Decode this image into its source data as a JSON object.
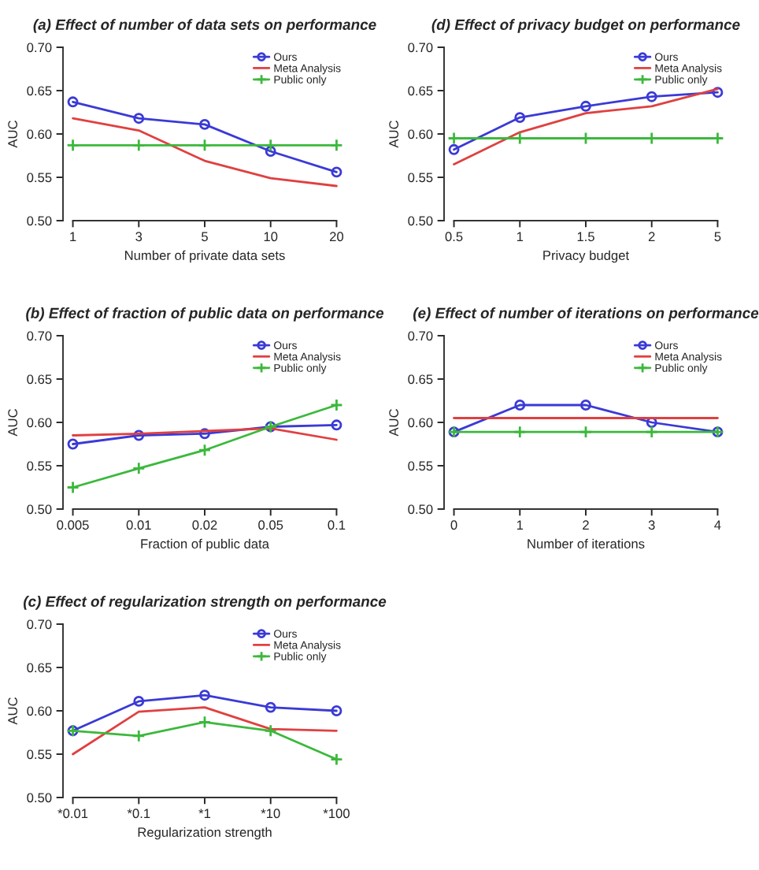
{
  "chart_data": [
    {
      "type": "line",
      "title": "(a) Effect of number of data sets on performance",
      "xlabel": "Number of private data sets",
      "ylabel": "AUC",
      "categories": [
        "1",
        "3",
        "5",
        "10",
        "20"
      ],
      "ylim": [
        0.5,
        0.7
      ],
      "yticks": [
        {
          "value": 0.5,
          "label": "0.50"
        },
        {
          "value": 0.55,
          "label": "0.55"
        },
        {
          "value": 0.6,
          "label": "0.60"
        },
        {
          "value": 0.65,
          "label": "0.65"
        },
        {
          "value": 0.7,
          "label": "0.70"
        }
      ],
      "grid": false,
      "legend": "top right",
      "series": [
        {
          "name": "Ours",
          "color": "#3a3ad6",
          "marker": "circle",
          "values": [
            0.637,
            0.618,
            0.611,
            0.58,
            0.556
          ]
        },
        {
          "name": "Meta Analysis",
          "color": "#e04040",
          "marker": "none",
          "values": [
            0.618,
            0.604,
            0.569,
            0.549,
            0.54
          ]
        },
        {
          "name": "Public only",
          "color": "#3cb83c",
          "marker": "cross",
          "values": [
            0.587,
            0.587,
            0.587,
            0.587,
            0.587
          ]
        }
      ]
    },
    {
      "type": "line",
      "title": "(b) Effect of fraction of public data on performance",
      "xlabel": "Fraction of public data",
      "ylabel": "AUC",
      "categories": [
        "0.005",
        "0.01",
        "0.02",
        "0.05",
        "0.1"
      ],
      "ylim": [
        0.5,
        0.7
      ],
      "yticks": [
        {
          "value": 0.5,
          "label": "0.50"
        },
        {
          "value": 0.55,
          "label": "0.55"
        },
        {
          "value": 0.6,
          "label": "0.60"
        },
        {
          "value": 0.65,
          "label": "0.65"
        },
        {
          "value": 0.7,
          "label": "0.70"
        }
      ],
      "grid": false,
      "legend": "top right",
      "series": [
        {
          "name": "Ours",
          "color": "#3a3ad6",
          "marker": "circle",
          "values": [
            0.575,
            0.585,
            0.587,
            0.595,
            0.597
          ]
        },
        {
          "name": "Meta Analysis",
          "color": "#e04040",
          "marker": "none",
          "values": [
            0.585,
            0.587,
            0.59,
            0.593,
            0.58
          ]
        },
        {
          "name": "Public only",
          "color": "#3cb83c",
          "marker": "cross",
          "values": [
            0.525,
            0.547,
            0.568,
            0.595,
            0.62
          ]
        }
      ]
    },
    {
      "type": "line",
      "title": "(c) Effect of regularization strength on performance",
      "xlabel": "Regularization strength",
      "ylabel": "AUC",
      "categories": [
        "*0.01",
        "*0.1",
        "*1",
        "*10",
        "*100"
      ],
      "ylim": [
        0.5,
        0.7
      ],
      "yticks": [
        {
          "value": 0.5,
          "label": "0.50"
        },
        {
          "value": 0.55,
          "label": "0.55"
        },
        {
          "value": 0.6,
          "label": "0.60"
        },
        {
          "value": 0.65,
          "label": "0.65"
        },
        {
          "value": 0.7,
          "label": "0.70"
        }
      ],
      "grid": false,
      "legend": "top right",
      "series": [
        {
          "name": "Ours",
          "color": "#3a3ad6",
          "marker": "circle",
          "values": [
            0.577,
            0.611,
            0.618,
            0.604,
            0.6
          ]
        },
        {
          "name": "Meta Analysis",
          "color": "#e04040",
          "marker": "none",
          "values": [
            0.55,
            0.599,
            0.604,
            0.579,
            0.577
          ]
        },
        {
          "name": "Public only",
          "color": "#3cb83c",
          "marker": "cross",
          "values": [
            0.577,
            0.571,
            0.587,
            0.577,
            0.544
          ]
        }
      ]
    },
    {
      "type": "line",
      "title": "(d) Effect of privacy budget on performance",
      "xlabel": "Privacy budget",
      "ylabel": "AUC",
      "categories": [
        "0.5",
        "1",
        "1.5",
        "2",
        "5"
      ],
      "ylim": [
        0.5,
        0.7
      ],
      "yticks": [
        {
          "value": 0.5,
          "label": "0.50"
        },
        {
          "value": 0.55,
          "label": "0.55"
        },
        {
          "value": 0.6,
          "label": "0.60"
        },
        {
          "value": 0.65,
          "label": "0.65"
        },
        {
          "value": 0.7,
          "label": "0.70"
        }
      ],
      "grid": false,
      "legend": "top right",
      "series": [
        {
          "name": "Ours",
          "color": "#3a3ad6",
          "marker": "circle",
          "values": [
            0.582,
            0.619,
            0.632,
            0.643,
            0.648
          ]
        },
        {
          "name": "Meta Analysis",
          "color": "#e04040",
          "marker": "none",
          "values": [
            0.565,
            0.602,
            0.624,
            0.632,
            0.652
          ]
        },
        {
          "name": "Public only",
          "color": "#3cb83c",
          "marker": "cross",
          "values": [
            0.595,
            0.595,
            0.595,
            0.595,
            0.595
          ]
        }
      ]
    },
    {
      "type": "line",
      "title": "(e) Effect of number of iterations on performance",
      "xlabel": "Number of iterations",
      "ylabel": "AUC",
      "categories": [
        "0",
        "1",
        "2",
        "3",
        "4"
      ],
      "ylim": [
        0.5,
        0.7
      ],
      "yticks": [
        {
          "value": 0.5,
          "label": "0.50"
        },
        {
          "value": 0.55,
          "label": "0.55"
        },
        {
          "value": 0.6,
          "label": "0.60"
        },
        {
          "value": 0.65,
          "label": "0.65"
        },
        {
          "value": 0.7,
          "label": "0.70"
        }
      ],
      "grid": false,
      "legend": "top right",
      "series": [
        {
          "name": "Ours",
          "color": "#3a3ad6",
          "marker": "circle",
          "values": [
            0.589,
            0.62,
            0.62,
            0.6,
            0.589
          ]
        },
        {
          "name": "Meta Analysis",
          "color": "#e04040",
          "marker": "none",
          "values": [
            0.605,
            0.605,
            0.605,
            0.605,
            0.605
          ]
        },
        {
          "name": "Public only",
          "color": "#3cb83c",
          "marker": "cross",
          "values": [
            0.589,
            0.589,
            0.589,
            0.589,
            0.589
          ]
        }
      ]
    }
  ]
}
